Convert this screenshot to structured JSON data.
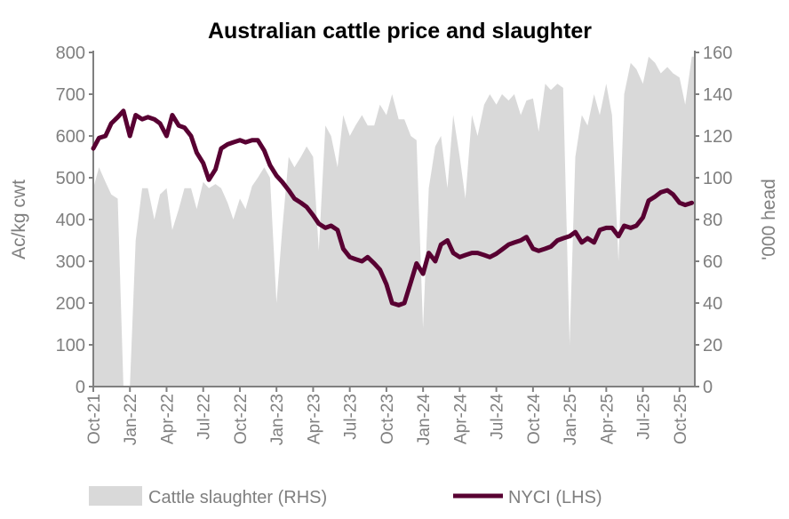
{
  "chart_data": {
    "type": "line+area",
    "title": "Australian cattle price and slaughter",
    "ylabel_left": "Ac/kg cwt",
    "ylabel_right": "'000 head",
    "ylim_left": [
      0,
      800
    ],
    "ylim_right": [
      0,
      160
    ],
    "yticks_left": [
      "0",
      "100",
      "200",
      "300",
      "400",
      "500",
      "600",
      "700",
      "800"
    ],
    "yticks_right": [
      "0",
      "20",
      "40",
      "60",
      "80",
      "100",
      "120",
      "140",
      "160"
    ],
    "xticks": [
      "Oct-21",
      "Jan-22",
      "Apr-22",
      "Jul-22",
      "Oct-22",
      "Jan-23",
      "Apr-23",
      "Jul-23",
      "Oct-23",
      "Jan-24",
      "Apr-24",
      "Jul-24",
      "Oct-24",
      "Jan-25",
      "Apr-25",
      "Jul-25",
      "Oct-25"
    ],
    "grid": false,
    "legend_placement": "bottom",
    "colors": {
      "area": "#d9d9d9",
      "line": "#580032",
      "axis": "#808080",
      "text": "#7f7f7f"
    },
    "x": [
      "2021-10-01",
      "2021-10-15",
      "2021-11-01",
      "2021-11-15",
      "2021-12-01",
      "2021-12-15",
      "2022-01-01",
      "2022-01-15",
      "2022-02-01",
      "2022-02-15",
      "2022-03-01",
      "2022-03-15",
      "2022-04-01",
      "2022-04-15",
      "2022-05-01",
      "2022-05-15",
      "2022-06-01",
      "2022-06-15",
      "2022-07-01",
      "2022-07-15",
      "2022-08-01",
      "2022-08-15",
      "2022-09-01",
      "2022-09-15",
      "2022-10-01",
      "2022-10-15",
      "2022-11-01",
      "2022-11-15",
      "2022-12-01",
      "2022-12-15",
      "2023-01-01",
      "2023-01-15",
      "2023-02-01",
      "2023-02-15",
      "2023-03-01",
      "2023-03-15",
      "2023-04-01",
      "2023-04-15",
      "2023-05-01",
      "2023-05-15",
      "2023-06-01",
      "2023-06-15",
      "2023-07-01",
      "2023-07-15",
      "2023-08-01",
      "2023-08-15",
      "2023-09-01",
      "2023-09-15",
      "2023-10-01",
      "2023-10-15",
      "2023-11-01",
      "2023-11-15",
      "2023-12-01",
      "2023-12-15",
      "2024-01-01",
      "2024-01-15",
      "2024-02-01",
      "2024-02-15",
      "2024-03-01",
      "2024-03-15",
      "2024-04-01",
      "2024-04-15",
      "2024-05-01",
      "2024-05-15",
      "2024-06-01",
      "2024-06-15",
      "2024-07-01",
      "2024-07-15",
      "2024-08-01",
      "2024-08-15",
      "2024-09-01",
      "2024-09-15",
      "2024-10-01",
      "2024-10-15",
      "2024-11-01",
      "2024-11-15",
      "2024-12-01",
      "2024-12-15",
      "2025-01-01",
      "2025-01-15",
      "2025-02-01",
      "2025-02-15",
      "2025-03-01",
      "2025-03-15",
      "2025-04-01",
      "2025-04-15",
      "2025-05-01",
      "2025-05-15",
      "2025-06-01",
      "2025-06-15",
      "2025-07-01",
      "2025-07-15",
      "2025-08-01",
      "2025-08-15",
      "2025-09-01",
      "2025-09-15",
      "2025-10-01",
      "2025-10-15",
      "2025-11-01"
    ],
    "series": [
      {
        "name": "Cattle slaughter (RHS)",
        "type": "area",
        "axis": "right",
        "values": [
          95,
          105,
          98,
          92,
          90,
          0,
          0,
          70,
          95,
          95,
          80,
          92,
          95,
          75,
          85,
          95,
          95,
          85,
          98,
          95,
          97,
          95,
          88,
          80,
          90,
          85,
          96,
          100,
          105,
          100,
          40,
          75,
          110,
          105,
          110,
          115,
          110,
          65,
          125,
          120,
          105,
          130,
          120,
          125,
          130,
          125,
          125,
          135,
          130,
          140,
          128,
          128,
          120,
          118,
          28,
          95,
          115,
          120,
          95,
          130,
          110,
          90,
          130,
          120,
          135,
          140,
          135,
          140,
          137,
          140,
          130,
          137,
          138,
          122,
          145,
          142,
          145,
          143,
          20,
          110,
          130,
          125,
          140,
          130,
          145,
          130,
          60,
          140,
          155,
          152,
          145,
          158,
          155,
          150,
          153,
          150,
          148,
          135,
          158
        ]
      },
      {
        "name": "NYCI (LHS)",
        "type": "line",
        "axis": "left",
        "values": [
          570,
          595,
          600,
          630,
          645,
          660,
          600,
          650,
          640,
          645,
          640,
          630,
          600,
          650,
          625,
          620,
          600,
          560,
          535,
          495,
          520,
          570,
          580,
          585,
          590,
          585,
          590,
          590,
          565,
          530,
          505,
          490,
          470,
          450,
          440,
          430,
          410,
          390,
          380,
          385,
          375,
          330,
          310,
          305,
          300,
          310,
          295,
          280,
          245,
          200,
          195,
          200,
          250,
          295,
          270,
          320,
          300,
          340,
          350,
          320,
          310,
          315,
          320,
          320,
          315,
          310,
          318,
          328,
          340,
          345,
          350,
          358,
          330,
          325,
          330,
          335,
          350,
          355,
          360,
          370,
          345,
          355,
          345,
          375,
          380,
          380,
          360,
          385,
          380,
          385,
          405,
          445,
          455,
          465,
          470,
          460,
          440,
          435,
          440
        ]
      }
    ]
  }
}
